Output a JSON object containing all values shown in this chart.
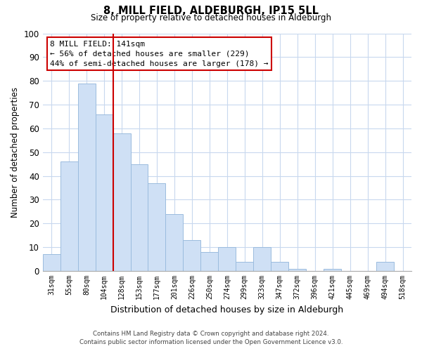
{
  "title": "8, MILL FIELD, ALDEBURGH, IP15 5LL",
  "subtitle": "Size of property relative to detached houses in Aldeburgh",
  "xlabel": "Distribution of detached houses by size in Aldeburgh",
  "ylabel": "Number of detached properties",
  "categories": [
    "31sqm",
    "55sqm",
    "80sqm",
    "104sqm",
    "128sqm",
    "153sqm",
    "177sqm",
    "201sqm",
    "226sqm",
    "250sqm",
    "274sqm",
    "299sqm",
    "323sqm",
    "347sqm",
    "372sqm",
    "396sqm",
    "421sqm",
    "445sqm",
    "469sqm",
    "494sqm",
    "518sqm"
  ],
  "values": [
    7,
    46,
    79,
    66,
    58,
    45,
    37,
    24,
    13,
    8,
    10,
    4,
    10,
    4,
    1,
    0,
    1,
    0,
    0,
    4,
    0
  ],
  "bar_color": "#cfe0f5",
  "bar_edge_color": "#9bbcde",
  "vline_x": 3.5,
  "vline_color": "#cc0000",
  "annotation_line1": "8 MILL FIELD: 141sqm",
  "annotation_line2": "← 56% of detached houses are smaller (229)",
  "annotation_line3": "44% of semi-detached houses are larger (178) →",
  "annotation_box_color": "#ffffff",
  "annotation_box_edge_color": "#cc0000",
  "ylim": [
    0,
    100
  ],
  "yticks": [
    0,
    10,
    20,
    30,
    40,
    50,
    60,
    70,
    80,
    90,
    100
  ],
  "footnote1": "Contains HM Land Registry data © Crown copyright and database right 2024.",
  "footnote2": "Contains public sector information licensed under the Open Government Licence v3.0.",
  "background_color": "#ffffff",
  "grid_color": "#c8d8ee"
}
